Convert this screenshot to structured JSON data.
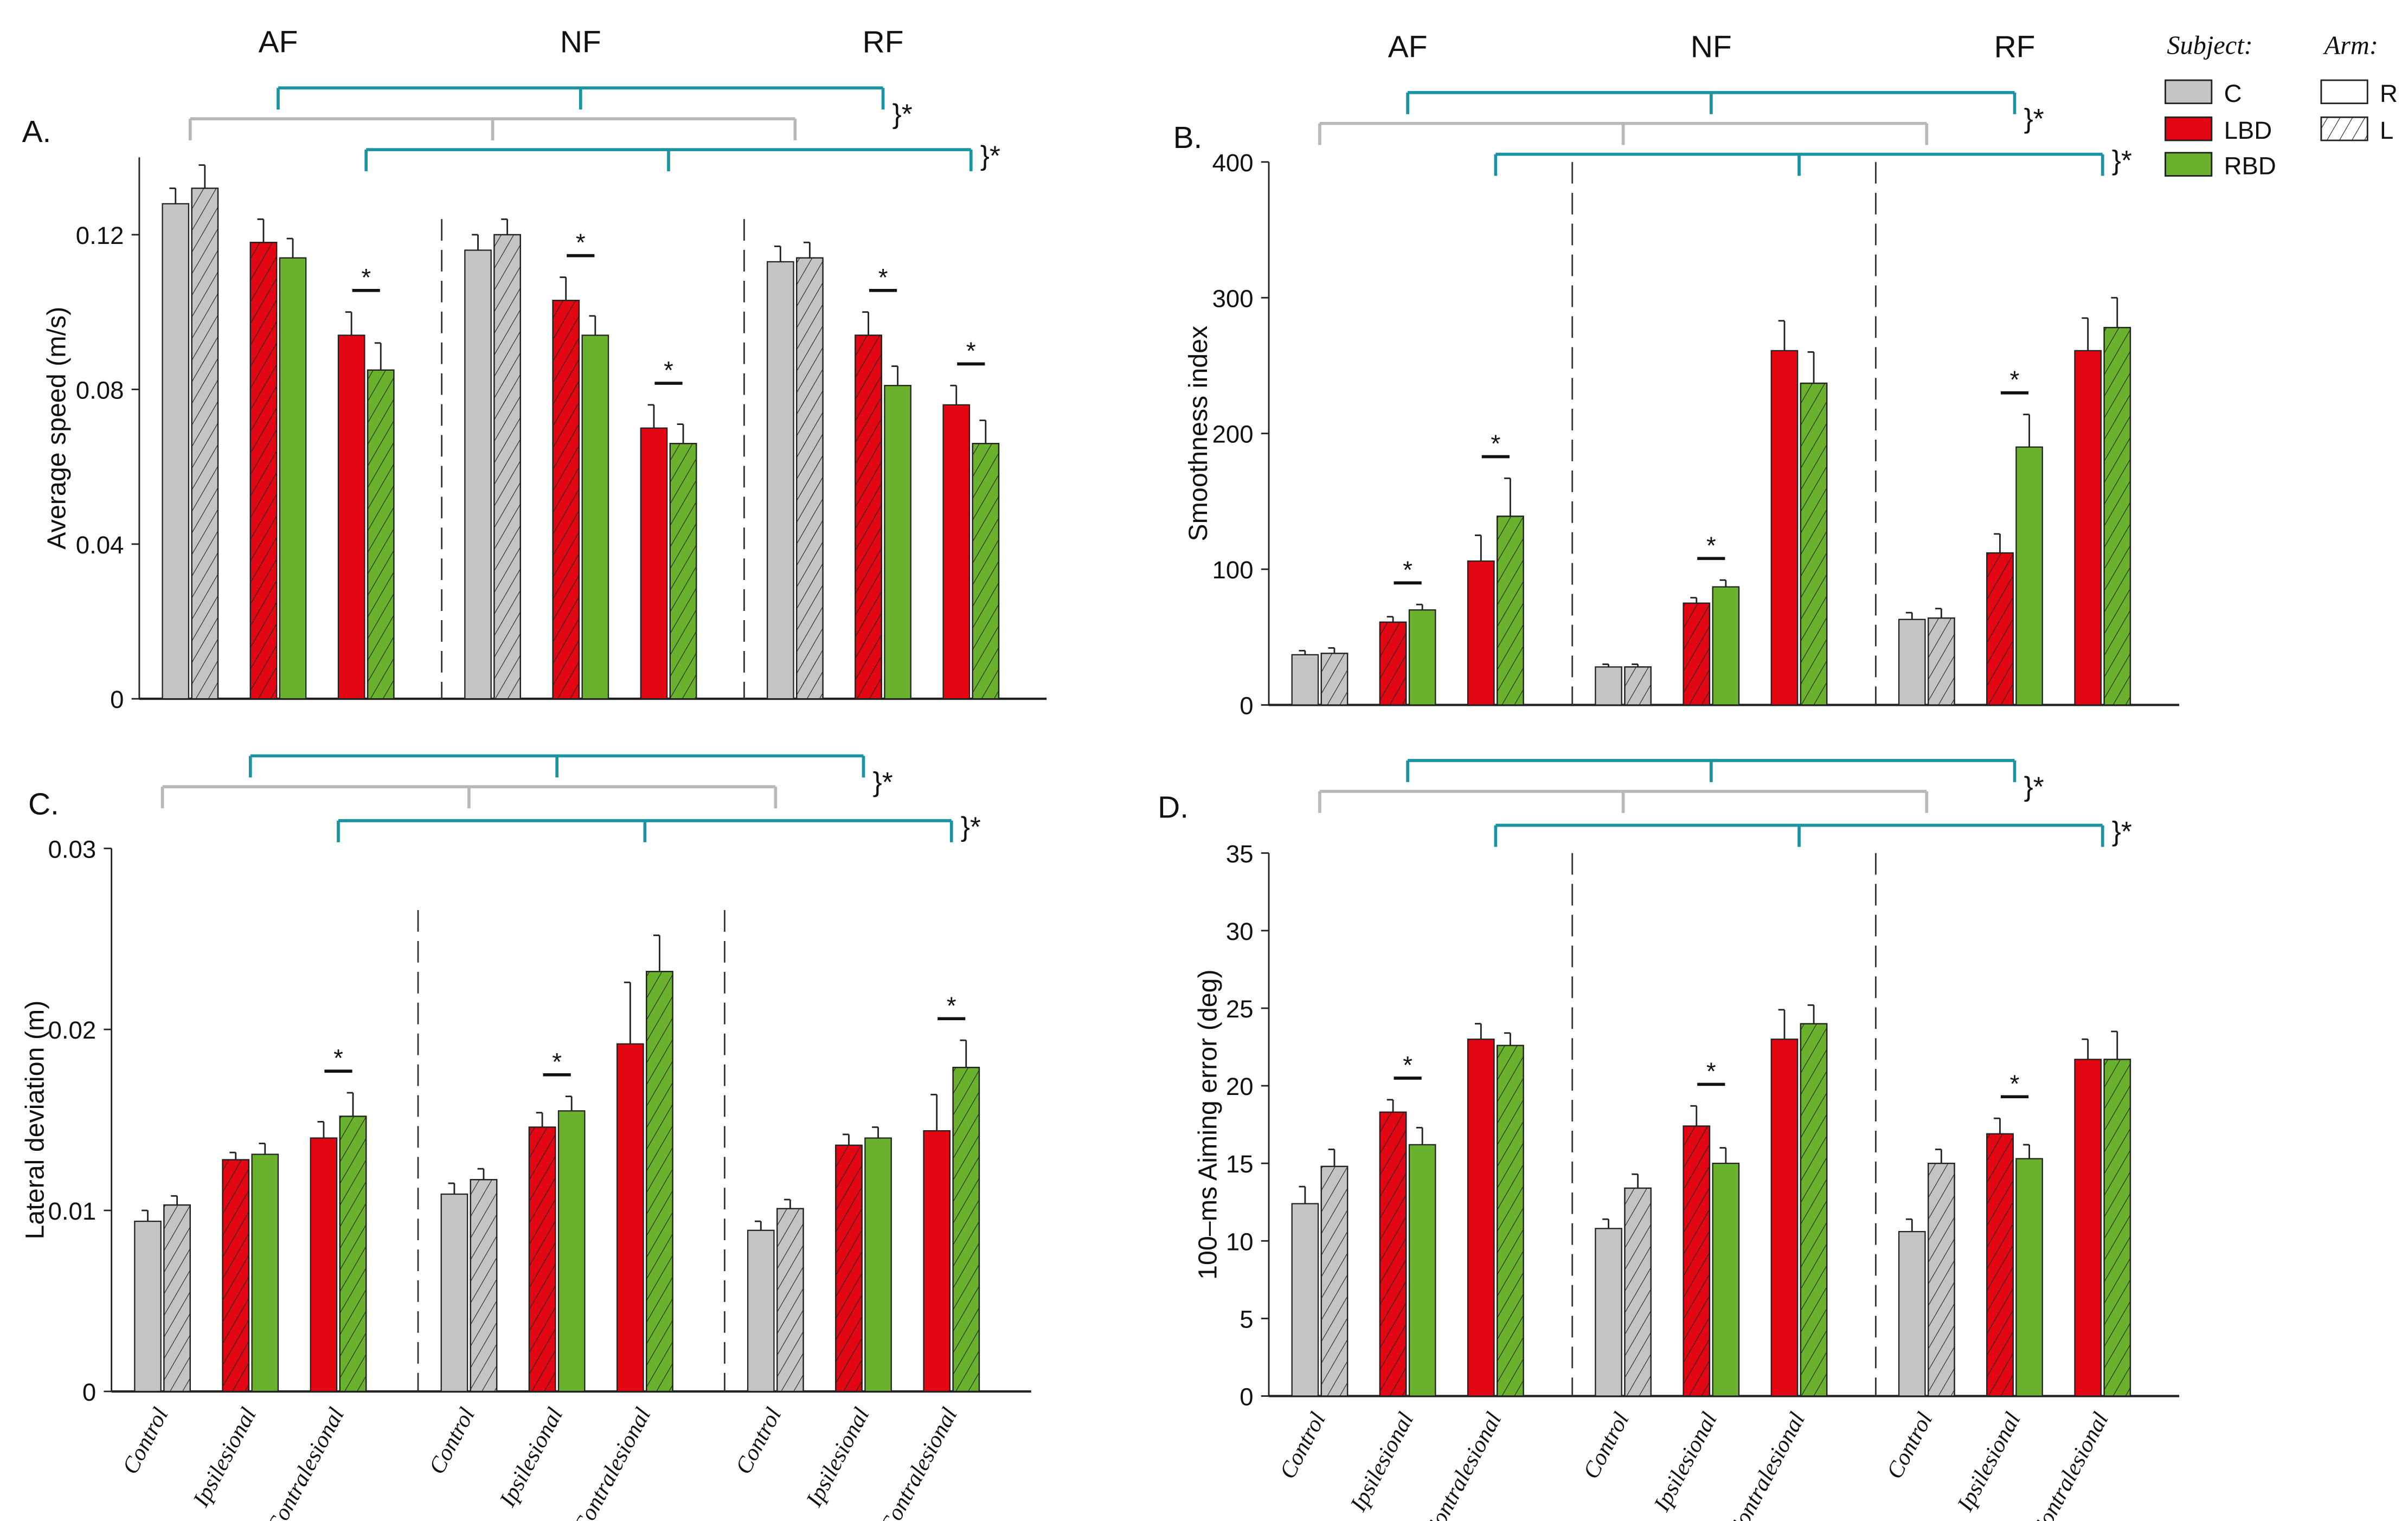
{
  "legend": {
    "subject_title": "Subject:",
    "arm_title": "Arm:",
    "subjects": [
      {
        "label": "C",
        "color": "#c4c4c4"
      },
      {
        "label": "LBD",
        "color": "#e30613"
      },
      {
        "label": "RBD",
        "color": "#6ab22e"
      }
    ],
    "arms": [
      {
        "label": "R",
        "pattern": "solid"
      },
      {
        "label": "L",
        "pattern": "hatched"
      }
    ]
  },
  "colors": {
    "gray_bracket": "#b8b8b8",
    "teal_bracket": "#1a93a3"
  },
  "sig_mark": "}*",
  "star": "*",
  "chart_data": [
    {
      "type": "bar",
      "panel": "A.",
      "ylabel": "Average speed (m/s)",
      "ylim": [
        0,
        0.14
      ],
      "yticks": [
        "0",
        "0.04",
        "0.08",
        "0.12"
      ],
      "ytick_values": [
        0,
        0.04,
        0.08,
        0.12
      ],
      "groups": [
        "AF",
        "NF",
        "RF"
      ],
      "categories": [
        "Control",
        "Ipsilesional",
        "Contralesional"
      ],
      "show_xlabels": false,
      "bar_order": [
        [
          "C",
          "R"
        ],
        [
          "C",
          "L"
        ],
        [
          "LBD",
          "L"
        ],
        [
          "RBD",
          "R"
        ],
        [
          "LBD",
          "R"
        ],
        [
          "RBD",
          "L"
        ]
      ],
      "values": [
        [
          0.128,
          0.132,
          0.118,
          0.114,
          0.094,
          0.085
        ],
        [
          0.116,
          0.12,
          0.103,
          0.094,
          0.07,
          0.066
        ],
        [
          0.113,
          0.114,
          0.094,
          0.081,
          0.076,
          0.066
        ]
      ],
      "errors": [
        [
          0.004,
          0.006,
          0.006,
          0.005,
          0.006,
          0.007
        ],
        [
          0.004,
          0.004,
          0.006,
          0.005,
          0.006,
          0.005
        ],
        [
          0.004,
          0.004,
          0.006,
          0.005,
          0.005,
          0.006
        ]
      ],
      "significant": [
        [
          false,
          false,
          true
        ],
        [
          false,
          true,
          true
        ],
        [
          false,
          true,
          true
        ]
      ]
    },
    {
      "type": "bar",
      "panel": "B.",
      "ylabel": "Smoothness index",
      "ylim": [
        0,
        400
      ],
      "yticks": [
        "0",
        "100",
        "200",
        "300",
        "400"
      ],
      "ytick_values": [
        0,
        100,
        200,
        300,
        400
      ],
      "groups": [
        "AF",
        "NF",
        "RF"
      ],
      "categories": [
        "Control",
        "Ipsilesional",
        "Contralesional"
      ],
      "show_xlabels": false,
      "bar_order": [
        [
          "C",
          "R"
        ],
        [
          "C",
          "L"
        ],
        [
          "LBD",
          "L"
        ],
        [
          "RBD",
          "R"
        ],
        [
          "LBD",
          "R"
        ],
        [
          "RBD",
          "L"
        ]
      ],
      "values": [
        [
          37,
          38,
          61,
          70,
          106,
          139
        ],
        [
          28,
          28,
          75,
          87,
          261,
          237
        ],
        [
          63,
          64,
          112,
          190,
          261,
          278
        ]
      ],
      "errors": [
        [
          3,
          4,
          4,
          4,
          19,
          28
        ],
        [
          2,
          2,
          4,
          5,
          22,
          23
        ],
        [
          5,
          7,
          14,
          24,
          24,
          22
        ]
      ],
      "significant": [
        [
          false,
          true,
          true
        ],
        [
          false,
          true,
          false
        ],
        [
          false,
          true,
          false
        ]
      ]
    },
    {
      "type": "bar",
      "panel": "C.",
      "ylabel": "Lateral deviation (m)",
      "ylim": [
        0,
        0.03
      ],
      "yticks": [
        "0",
        "0.01",
        "0.02",
        "0.03"
      ],
      "ytick_values": [
        0,
        0.01,
        0.02,
        0.03
      ],
      "groups": [
        "AF",
        "NF",
        "RF"
      ],
      "categories": [
        "Control",
        "Ipsilesional",
        "Contralesional"
      ],
      "show_xlabels": true,
      "bar_order": [
        [
          "C",
          "R"
        ],
        [
          "C",
          "L"
        ],
        [
          "LBD",
          "L"
        ],
        [
          "RBD",
          "R"
        ],
        [
          "LBD",
          "R"
        ],
        [
          "RBD",
          "L"
        ]
      ],
      "values": [
        [
          0.0094,
          0.0103,
          0.0128,
          0.0131,
          0.014,
          0.0152
        ],
        [
          0.0109,
          0.0117,
          0.0146,
          0.0155,
          0.0192,
          0.0232
        ],
        [
          0.0089,
          0.0101,
          0.0136,
          0.014,
          0.0144,
          0.0179
        ]
      ],
      "errors": [
        [
          0.0006,
          0.0005,
          0.0004,
          0.0006,
          0.0009,
          0.0013
        ],
        [
          0.0006,
          0.0006,
          0.0008,
          0.0008,
          0.0034,
          0.002
        ],
        [
          0.0005,
          0.0005,
          0.0006,
          0.0006,
          0.002,
          0.0015
        ]
      ],
      "significant": [
        [
          false,
          false,
          true
        ],
        [
          false,
          true,
          false
        ],
        [
          false,
          false,
          true
        ]
      ]
    },
    {
      "type": "bar",
      "panel": "D.",
      "ylabel": "100–ms Aiming error (deg)",
      "ylim": [
        0,
        35
      ],
      "yticks": [
        "0",
        "5",
        "10",
        "15",
        "20",
        "25",
        "30",
        "35"
      ],
      "ytick_values": [
        0,
        5,
        10,
        15,
        20,
        25,
        30,
        35
      ],
      "groups": [
        "AF",
        "NF",
        "RF"
      ],
      "categories": [
        "Control",
        "Ipsilesional",
        "Contralesional"
      ],
      "show_xlabels": true,
      "bar_order": [
        [
          "C",
          "R"
        ],
        [
          "C",
          "L"
        ],
        [
          "LBD",
          "L"
        ],
        [
          "RBD",
          "R"
        ],
        [
          "LBD",
          "R"
        ],
        [
          "RBD",
          "L"
        ]
      ],
      "values": [
        [
          12.4,
          14.8,
          18.3,
          16.2,
          23.0,
          22.6
        ],
        [
          10.8,
          13.4,
          17.4,
          15.0,
          23.0,
          24.0
        ],
        [
          10.6,
          15.0,
          16.9,
          15.3,
          21.7,
          21.7
        ]
      ],
      "errors": [
        [
          1.1,
          1.1,
          0.8,
          1.1,
          1.0,
          0.8
        ],
        [
          0.6,
          0.9,
          1.3,
          1.0,
          1.9,
          1.2
        ],
        [
          0.8,
          0.9,
          1.0,
          0.9,
          1.3,
          1.8
        ]
      ],
      "significant": [
        [
          false,
          true,
          false
        ],
        [
          false,
          true,
          false
        ],
        [
          false,
          true,
          false
        ]
      ]
    }
  ]
}
